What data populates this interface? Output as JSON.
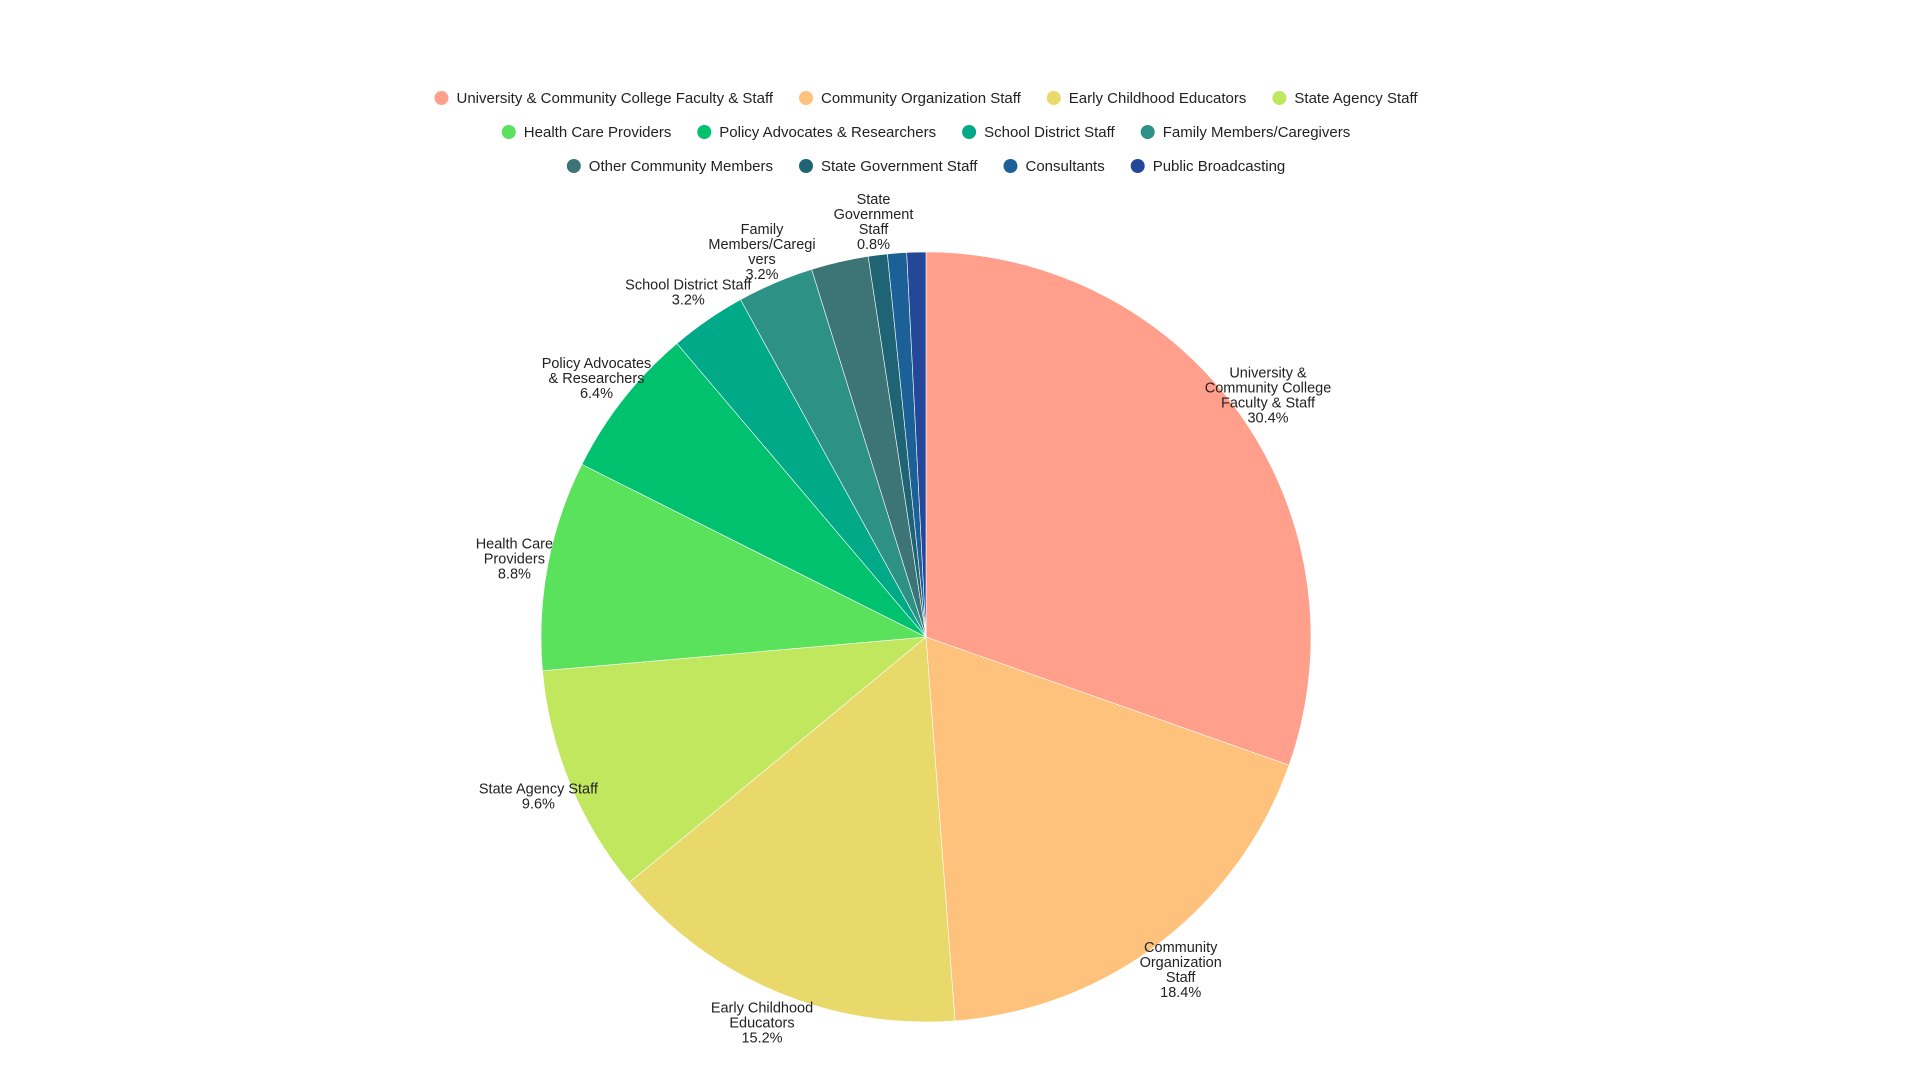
{
  "chart_data": {
    "type": "pie",
    "title": "",
    "legend_position": "top",
    "slices": [
      {
        "name": "University & Community College Faculty & Staff",
        "label_lines": [
          "University &",
          "Community College",
          "Faculty & Staff"
        ],
        "value": 30.4,
        "value_label": "30.4%",
        "color": "#ff9f8c",
        "show_label": true
      },
      {
        "name": "Community Organization Staff",
        "label_lines": [
          "Community",
          "Organization",
          "Staff"
        ],
        "value": 18.4,
        "value_label": "18.4%",
        "color": "#ffc27c",
        "show_label": true
      },
      {
        "name": "Early Childhood Educators",
        "label_lines": [
          "Early Childhood",
          "Educators"
        ],
        "value": 15.2,
        "value_label": "15.2%",
        "color": "#e9d96b",
        "show_label": true
      },
      {
        "name": "State Agency Staff",
        "label_lines": [
          "State Agency Staff"
        ],
        "value": 9.6,
        "value_label": "9.6%",
        "color": "#c1e75f",
        "show_label": true
      },
      {
        "name": "Health Care Providers",
        "label_lines": [
          "Health Care",
          "Providers"
        ],
        "value": 8.8,
        "value_label": "8.8%",
        "color": "#5ae25d",
        "show_label": true
      },
      {
        "name": "Policy Advocates & Researchers",
        "label_lines": [
          "Policy Advocates",
          "& Researchers"
        ],
        "value": 6.4,
        "value_label": "6.4%",
        "color": "#00c26e",
        "show_label": true
      },
      {
        "name": "School District Staff",
        "label_lines": [
          "School District Staff"
        ],
        "value": 3.2,
        "value_label": "3.2%",
        "color": "#00a987",
        "show_label": true
      },
      {
        "name": "Family Members/Caregivers",
        "label_lines": [
          "Family",
          "Members/Caregi",
          "vers"
        ],
        "value": 3.2,
        "value_label": "3.2%",
        "color": "#2e9185",
        "show_label": true
      },
      {
        "name": "Other Community Members",
        "label_lines": [],
        "value": 2.4,
        "value_label": "",
        "color": "#3d7475",
        "show_label": false
      },
      {
        "name": "State Government Staff",
        "label_lines": [
          "State",
          "Government",
          "Staff"
        ],
        "value": 0.8,
        "value_label": "0.8%",
        "color": "#1f6475",
        "show_label": true
      },
      {
        "name": "Consultants",
        "label_lines": [],
        "value": 0.8,
        "value_label": "",
        "color": "#1b6096",
        "show_label": false
      },
      {
        "name": "Public Broadcasting",
        "label_lines": [],
        "value": 0.8,
        "value_label": "",
        "color": "#25479a",
        "show_label": false
      }
    ],
    "legend_rows": [
      [
        0,
        1,
        2,
        3
      ],
      [
        4,
        5,
        6,
        7
      ],
      [
        8,
        9,
        10,
        11
      ]
    ]
  }
}
